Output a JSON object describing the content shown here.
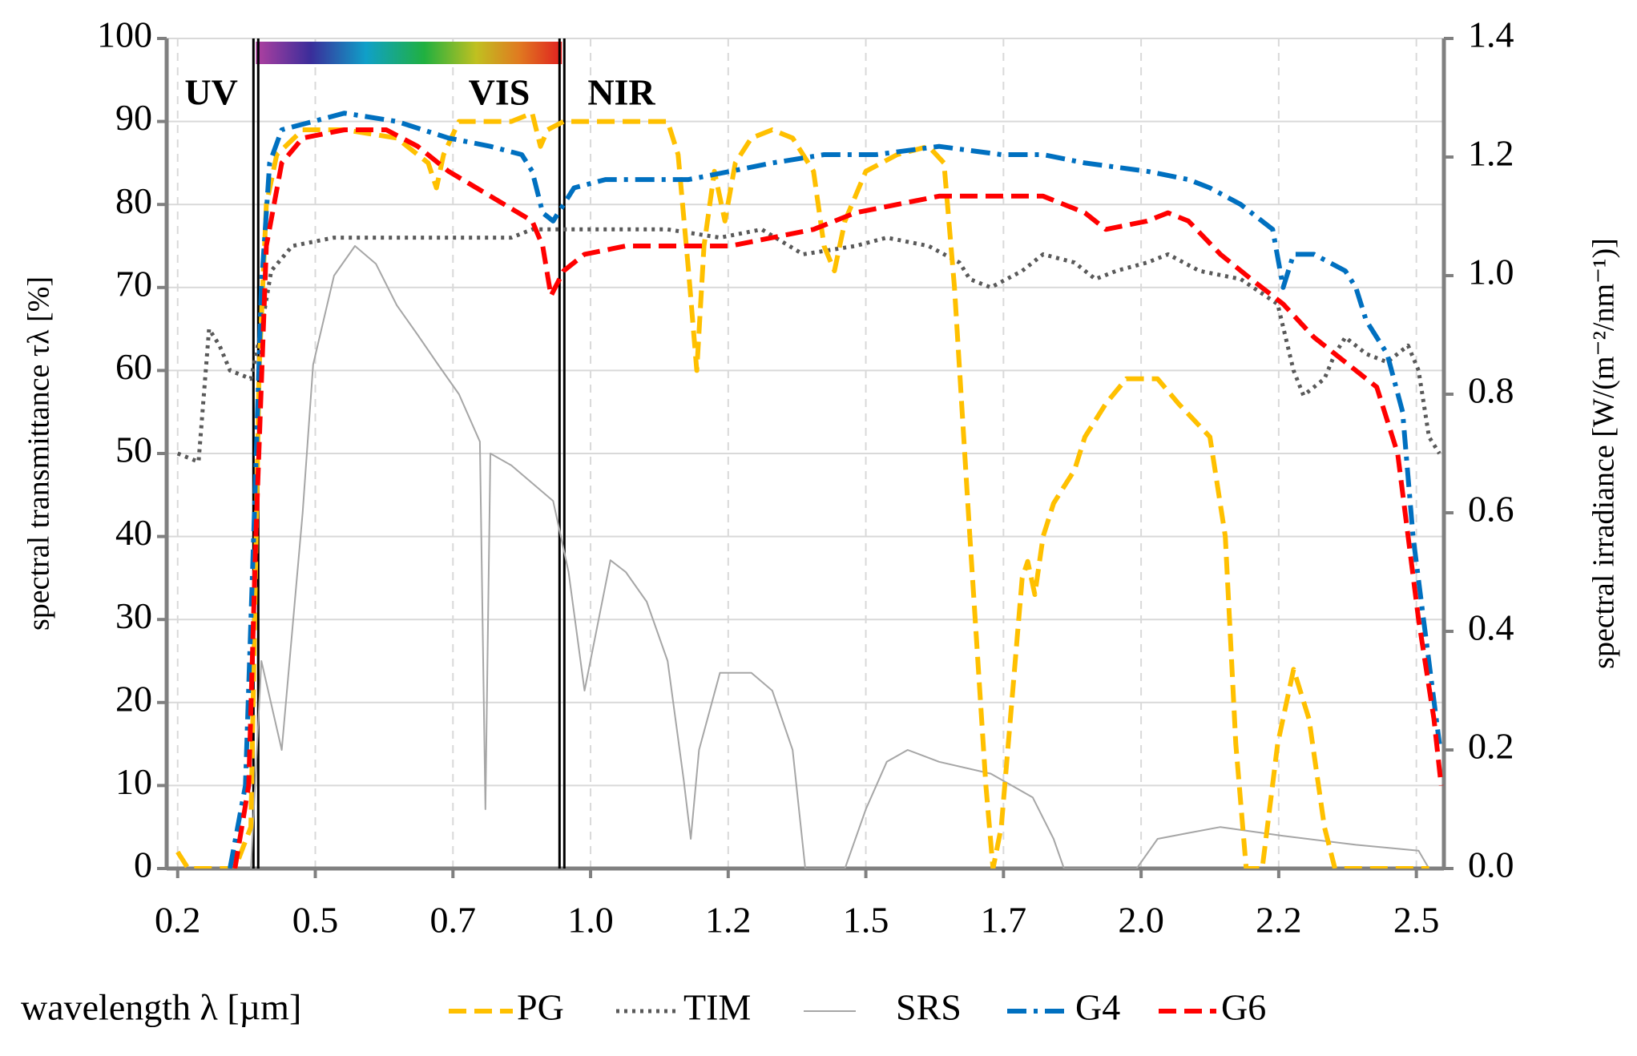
{
  "chart_data": {
    "type": "line",
    "xlabel": "wavelength λ  [µm]",
    "ylabel": "spectral transmittance  τλ  [%]",
    "y2label": "spectral irradiance [W/(m⁻²/nm⁻¹)]",
    "xlim": [
      0.18,
      2.5
    ],
    "xticks": [
      0.2,
      {
        "value": 0.45,
        "label": "0.5"
      },
      0.7,
      {
        "value": 0.95,
        "label": "1.0"
      },
      1.2,
      {
        "value": 1.45,
        "label": "1.5"
      },
      1.7,
      {
        "value": 1.95,
        "label": "2.0"
      },
      2.2,
      {
        "value": 2.45,
        "label": "2.5"
      }
    ],
    "ylim": [
      0,
      100
    ],
    "yticks": [
      0,
      10,
      20,
      30,
      40,
      50,
      60,
      70,
      80,
      90,
      100
    ],
    "y2lim": [
      0,
      1.4
    ],
    "y2ticks": [
      {
        "value": 0,
        "label": "0.0"
      },
      0.2,
      0.4,
      0.6,
      0.8,
      {
        "value": 1,
        "label": "1.0"
      },
      1.2,
      1.4
    ],
    "grid": true,
    "boundaries": [
      0.342,
      0.898
    ],
    "region_labels": [
      "UV",
      "VIS",
      "NIR"
    ],
    "series": [
      {
        "name": "SRS",
        "color": "#a6a6a6",
        "style": "solid",
        "axis": "y2",
        "x": [
          0.333,
          0.352,
          0.389,
          0.427,
          0.446,
          0.484,
          0.522,
          0.56,
          0.598,
          0.636,
          0.673,
          0.711,
          0.749,
          0.759,
          0.768,
          0.806,
          0.844,
          0.882,
          0.91,
          0.939,
          0.986,
          1.014,
          1.052,
          1.09,
          1.119,
          1.132,
          1.147,
          1.185,
          1.242,
          1.28,
          1.317,
          1.34,
          1.412,
          1.45,
          1.488,
          1.526,
          1.583,
          1.677,
          1.753,
          1.791,
          1.81,
          1.942,
          1.98,
          2.036,
          2.094,
          2.208,
          2.34,
          2.454,
          2.473
        ],
        "values": [
          0,
          0.35,
          0.2,
          0.6,
          0.85,
          1.0,
          1.05,
          1.02,
          0.95,
          0.9,
          0.85,
          0.8,
          0.72,
          0.1,
          0.7,
          0.68,
          0.65,
          0.62,
          0.5,
          0.3,
          0.52,
          0.5,
          0.45,
          0.35,
          0.15,
          0.05,
          0.2,
          0.33,
          0.33,
          0.3,
          0.2,
          0,
          0,
          0.1,
          0.18,
          0.2,
          0.18,
          0.16,
          0.12,
          0.05,
          0,
          0,
          0.05,
          0.06,
          0.07,
          0.055,
          0.04,
          0.03,
          0
        ]
      },
      {
        "name": "TIM",
        "color": "#595959",
        "style": "dotted",
        "x": [
          0.2,
          0.238,
          0.257,
          0.276,
          0.295,
          0.333,
          0.352,
          0.37,
          0.408,
          0.484,
          0.806,
          0.844,
          1.09,
          1.185,
          1.261,
          1.336,
          1.431,
          1.488,
          1.564,
          1.62,
          1.639,
          1.677,
          1.734,
          1.772,
          1.829,
          1.867,
          1.905,
          1.961,
          1.999,
          2.056,
          2.131,
          2.198,
          2.227,
          2.245,
          2.283,
          2.302,
          2.321,
          2.359,
          2.397,
          2.435,
          2.454,
          2.473,
          2.492
        ],
        "values": [
          50,
          49,
          65,
          63,
          60,
          59,
          65,
          72,
          75,
          76,
          76,
          77,
          77,
          76,
          77,
          74,
          75,
          76,
          75,
          73,
          71,
          70,
          72,
          74,
          73,
          71,
          72,
          73,
          74,
          72,
          71,
          68,
          60,
          57,
          59,
          62,
          64,
          62,
          61,
          63,
          60,
          52,
          50
        ]
      },
      {
        "name": "PG",
        "color": "#ffc000",
        "style": "dashed",
        "x": [
          0.2,
          0.219,
          0.304,
          0.333,
          0.348,
          0.361,
          0.38,
          0.427,
          0.503,
          0.598,
          0.655,
          0.67,
          0.683,
          0.711,
          0.806,
          0.844,
          0.859,
          0.872,
          0.901,
          1.014,
          1.09,
          1.109,
          1.128,
          1.143,
          1.156,
          1.175,
          1.194,
          1.213,
          1.242,
          1.28,
          1.317,
          1.355,
          1.374,
          1.393,
          1.412,
          1.45,
          1.507,
          1.564,
          1.592,
          1.611,
          1.639,
          1.668,
          1.681,
          1.696,
          1.715,
          1.734,
          1.744,
          1.757,
          1.772,
          1.791,
          1.81,
          1.829,
          1.848,
          1.886,
          1.923,
          1.98,
          2.018,
          2.075,
          2.103,
          2.122,
          2.141,
          2.17,
          2.198,
          2.227,
          2.255,
          2.283,
          2.302,
          2.34,
          2.473
        ],
        "values": [
          2,
          0,
          0,
          5,
          60,
          80,
          86,
          89,
          89,
          88,
          85,
          82,
          86,
          90,
          90,
          91,
          87,
          89,
          90,
          90,
          90,
          86,
          72,
          60,
          75,
          84,
          78,
          85,
          88,
          89,
          88,
          84,
          75,
          72,
          78,
          84,
          86,
          87,
          85,
          70,
          40,
          10,
          0,
          5,
          20,
          35,
          37,
          33,
          40,
          44,
          46,
          48,
          52,
          56,
          59,
          59,
          56,
          52,
          40,
          15,
          0,
          0,
          15,
          24,
          18,
          5,
          0,
          0,
          0
        ]
      },
      {
        "name": "G4",
        "color": "#0070c0",
        "style": "dashdot",
        "x": [
          0.295,
          0.323,
          0.338,
          0.352,
          0.367,
          0.389,
          0.446,
          0.503,
          0.598,
          0.692,
          0.768,
          0.825,
          0.844,
          0.863,
          0.882,
          0.92,
          0.977,
          1.052,
          1.128,
          1.204,
          1.28,
          1.374,
          1.469,
          1.583,
          1.696,
          1.772,
          1.848,
          1.961,
          2.036,
          2.075,
          2.131,
          2.189,
          2.208,
          2.227,
          2.264,
          2.321,
          2.34,
          2.359,
          2.397,
          2.425,
          2.444,
          2.463,
          2.492
        ],
        "values": [
          0,
          10,
          40,
          70,
          85,
          89,
          90,
          91,
          90,
          88,
          87,
          86,
          84,
          79,
          78,
          82,
          83,
          83,
          83,
          84,
          85,
          86,
          86,
          87,
          86,
          86,
          85,
          84,
          83,
          82,
          80,
          77,
          70,
          74,
          74,
          72,
          70,
          66,
          62,
          55,
          40,
          30,
          15
        ]
      },
      {
        "name": "G6",
        "color": "#ff0000",
        "style": "dashed",
        "x": [
          0.304,
          0.329,
          0.342,
          0.361,
          0.389,
          0.427,
          0.503,
          0.579,
          0.636,
          0.692,
          0.768,
          0.844,
          0.863,
          0.878,
          0.901,
          0.939,
          1.014,
          1.128,
          1.204,
          1.28,
          1.355,
          1.431,
          1.507,
          1.583,
          1.696,
          1.772,
          1.848,
          1.886,
          1.961,
          1.999,
          2.036,
          2.094,
          2.15,
          2.208,
          2.264,
          2.321,
          2.378,
          2.416,
          2.454,
          2.482,
          2.495
        ],
        "values": [
          0,
          10,
          40,
          75,
          85,
          88,
          89,
          89,
          87,
          84,
          81,
          78,
          75,
          69,
          72,
          74,
          75,
          75,
          75,
          76,
          77,
          79,
          80,
          81,
          81,
          81,
          79,
          77,
          78,
          79,
          78,
          74,
          71,
          68,
          64,
          61,
          58,
          50,
          30,
          18,
          10
        ]
      }
    ]
  }
}
